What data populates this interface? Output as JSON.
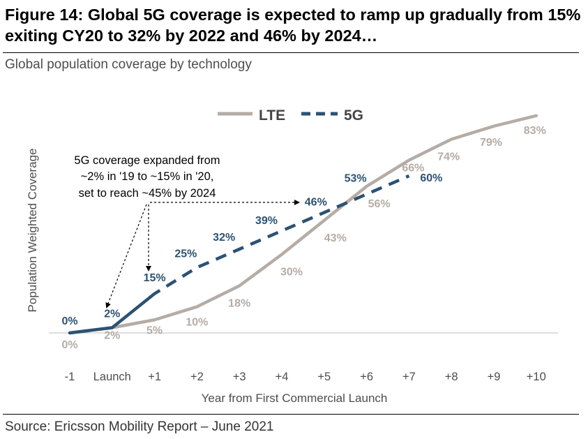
{
  "figure": {
    "title": "Figure 14: Global 5G coverage is expected to ramp up gradually from 15% exiting CY20 to 32% by 2022 and 46% by 2024…",
    "subtitle": "Global population coverage by technology",
    "source": "Source: Ericsson Mobility Report – June 2021"
  },
  "chart_data": {
    "type": "line",
    "xlabel": "Year from First Commercial Launch",
    "ylabel": "Population Weighted Coverage",
    "categories": [
      "-1",
      "Launch",
      "+1",
      "+2",
      "+3",
      "+4",
      "+5",
      "+6",
      "+7",
      "+8",
      "+9",
      "+10"
    ],
    "ylim": [
      0,
      100
    ],
    "grid": false,
    "legend_position": "top-center",
    "series": [
      {
        "name": "LTE",
        "color": "#b5aca5",
        "style": "solid",
        "values": [
          0,
          2,
          5,
          10,
          18,
          30,
          43,
          56,
          66,
          74,
          79,
          83
        ],
        "labels": [
          "0%",
          "2%",
          "5%",
          "10%",
          "18%",
          "30%",
          "43%",
          "56%",
          "66%",
          "74%",
          "79%",
          "83%"
        ]
      },
      {
        "name": "5G",
        "color": "#2c5273",
        "style": "solid-then-dashed",
        "values": [
          0,
          2,
          15,
          25,
          32,
          39,
          46,
          53,
          60,
          null,
          null,
          null
        ],
        "labels": [
          "0%",
          "2%",
          "15%",
          "25%",
          "32%",
          "39%",
          "46%",
          "53%",
          "60%",
          "",
          "",
          ""
        ]
      }
    ],
    "annotation": {
      "lines": [
        "5G coverage expanded from",
        "~2% in '19 to ~15% in '20,",
        "set to reach ~45% by 2024"
      ]
    }
  }
}
